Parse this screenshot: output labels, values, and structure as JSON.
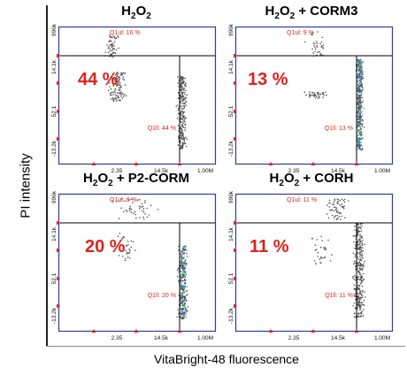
{
  "figure": {
    "ylabel": "PI intensity",
    "xlabel": "VitaBright-48 fluorescence"
  },
  "chart_data": [
    {
      "type": "scatter",
      "title": "H2O2",
      "title_parts": {
        "main": "H",
        "sub1": "2",
        "mid": "O",
        "sub2": "2",
        "suffix": ""
      },
      "big_label": "44 %",
      "quadrants": {
        "Q1ul": "Q1ul: 16 %",
        "Q1ll": "Q1ll: 44 %"
      },
      "x_ticks": [
        "2.35",
        "14.5k",
        "1.00M"
      ],
      "y_ticks": [
        "996k",
        "14.1k",
        "52.1",
        "-13.2k"
      ],
      "ylim": [
        -13200,
        996000
      ],
      "xlim": [
        2.35,
        1000000
      ],
      "populations": [
        {
          "name": "ul",
          "x": [
            1.1,
            1.5
          ],
          "y": [
            3.15,
            3.85
          ],
          "n": 55,
          "dense": false
        },
        {
          "name": "mid",
          "x": [
            1.15,
            1.75
          ],
          "y": [
            1.8,
            2.7
          ],
          "n": 110,
          "dense": false
        },
        {
          "name": "ll",
          "x": [
            3.05,
            3.35
          ],
          "y": [
            0.35,
            2.6
          ],
          "n": 260,
          "dense": false
        }
      ]
    },
    {
      "type": "scatter",
      "title": "H2O2 + CORM3",
      "title_parts": {
        "main": "H",
        "sub1": "2",
        "mid": "O",
        "sub2": "2",
        "suffix": " + CORM3"
      },
      "big_label": "13 %",
      "quadrants": {
        "Q1ul": "Q1ul: 9 %",
        "Q1ll": "Q1ll: 13 %"
      },
      "x_ticks": [
        "2.35",
        "14.5k",
        "1.00M"
      ],
      "y_ticks": [
        "996k",
        "14.1k",
        "52.1",
        "-13.2k"
      ],
      "ylim": [
        -13200,
        996000
      ],
      "xlim": [
        2.35,
        1000000
      ],
      "populations": [
        {
          "name": "ul",
          "x": [
            1.6,
            2.6
          ],
          "y": [
            3.2,
            3.95
          ],
          "n": 35,
          "dense": false
        },
        {
          "name": "mid",
          "x": [
            1.6,
            2.4
          ],
          "y": [
            1.9,
            2.1
          ],
          "n": 40,
          "dense": false
        },
        {
          "name": "ll",
          "x": [
            3.1,
            3.35
          ],
          "y": [
            0.3,
            3.1
          ],
          "n": 420,
          "dense": true
        }
      ]
    },
    {
      "type": "scatter",
      "title": "H2O2 + P2-CORM",
      "title_parts": {
        "main": "H",
        "sub1": "2",
        "mid": "O",
        "sub2": "2",
        "suffix": " + P2-CORM"
      },
      "big_label": "20 %",
      "quadrants": {
        "Q1ul": "Q1ul: 8 %",
        "Q1ll": "Q1ll: 20 %"
      },
      "x_ticks": [
        "2.35",
        "14.5k",
        "1.00M"
      ],
      "y_ticks": [
        "996k",
        "14.1k",
        "52.1",
        "-13.2k"
      ],
      "ylim": [
        -13200,
        996000
      ],
      "xlim": [
        2.35,
        1000000
      ],
      "populations": [
        {
          "name": "ul",
          "x": [
            1.1,
            2.8
          ],
          "y": [
            3.3,
            3.95
          ],
          "n": 45,
          "dense": false
        },
        {
          "name": "mid",
          "x": [
            1.3,
            2.0
          ],
          "y": [
            2.0,
            2.9
          ],
          "n": 35,
          "dense": false
        },
        {
          "name": "ll",
          "x": [
            3.05,
            3.4
          ],
          "y": [
            0.25,
            2.5
          ],
          "n": 320,
          "dense": true
        }
      ]
    },
    {
      "type": "scatter",
      "title": "H2O2 + CORH",
      "title_parts": {
        "main": "H",
        "sub1": "2",
        "mid": "O",
        "sub2": "2",
        "suffix": " + CORH"
      },
      "big_label": "11 %",
      "quadrants": {
        "Q1ul": "Q1ul: 11 %",
        "Q1ll": "Q1ll: 11 %"
      },
      "x_ticks": [
        "2.35",
        "14.5k",
        "1.00M"
      ],
      "y_ticks": [
        "996k",
        "14.1k",
        "52.1",
        "-13.2k"
      ],
      "ylim": [
        -13200,
        996000
      ],
      "xlim": [
        2.35,
        1000000
      ],
      "populations": [
        {
          "name": "ul",
          "x": [
            2.2,
            3.0
          ],
          "y": [
            3.3,
            3.95
          ],
          "n": 60,
          "dense": false
        },
        {
          "name": "mid",
          "x": [
            1.8,
            2.6
          ],
          "y": [
            1.9,
            2.8
          ],
          "n": 30,
          "dense": false
        },
        {
          "name": "ll",
          "x": [
            3.0,
            3.4
          ],
          "y": [
            0.3,
            3.2
          ],
          "n": 340,
          "dense": false
        }
      ]
    }
  ],
  "colors": {
    "plot_frame": "#2f3a9e",
    "gate_line": "#000000",
    "label_red": "#e0211b",
    "dot": "#555555",
    "density_low": "#3aa0ff",
    "density_high": "#26d14a"
  }
}
